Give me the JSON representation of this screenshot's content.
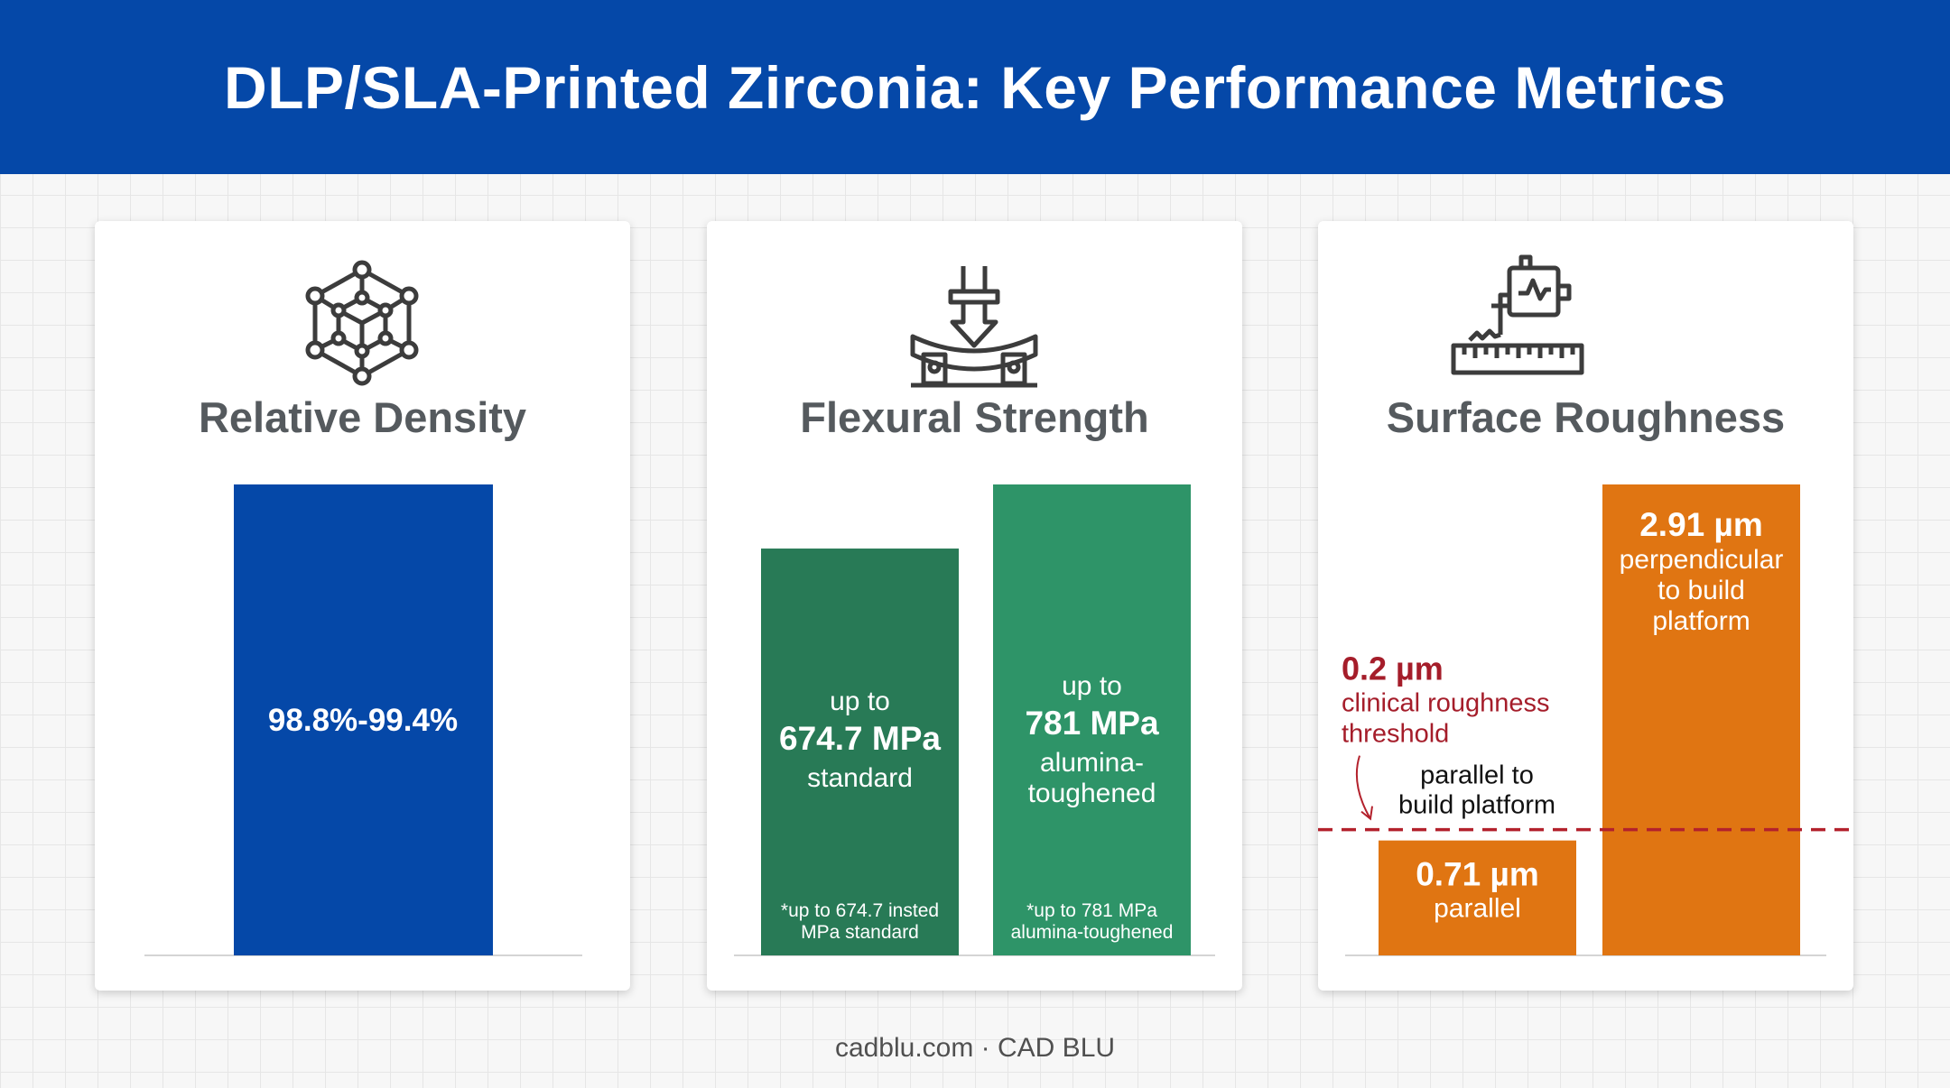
{
  "header": {
    "title": "DLP/SLA-Printed Zirconia: Key Performance Metrics"
  },
  "footer": {
    "text": "cadblu.com · CAD BLU"
  },
  "colors": {
    "header_bg": "#0548a8",
    "density_bar": "#0548a8",
    "flexural_standard": "#287a56",
    "flexural_toughened": "#2e9468",
    "roughness_bar": "#e07512",
    "threshold_line": "#b3212c",
    "threshold_text": "#a51d2a"
  },
  "cards": [
    {
      "title": "Relative Density",
      "icon": "lattice-cube-icon"
    },
    {
      "title": "Flexural Strength",
      "icon": "three-point-bend-test-icon"
    },
    {
      "title": "Surface Roughness",
      "icon": "profilometer-ruler-icon"
    }
  ],
  "chart_data": [
    {
      "type": "bar",
      "title": "Relative Density",
      "categories": [
        ""
      ],
      "values": [
        99.4
      ],
      "ylim": [
        0,
        99.4
      ],
      "bar_labels": [
        {
          "value_text": "98.8%-99.4%"
        }
      ]
    },
    {
      "type": "bar",
      "title": "Flexural Strength",
      "categories": [
        "standard",
        "alumina-toughened"
      ],
      "values": [
        674.7,
        781
      ],
      "ylim": [
        0,
        781
      ],
      "bar_labels": [
        {
          "prefix": "up to",
          "value_text": "674.7 MPa",
          "caption": "standard",
          "footnote_1": "*up to 674.7 insted",
          "footnote_2": "MPa standard"
        },
        {
          "prefix": "up to",
          "value_text": "781 MPa",
          "caption_1": "alumina-",
          "caption_2": "toughened",
          "footnote_1": "*up to 781 MPa",
          "footnote_2": "alumina-toughened"
        }
      ]
    },
    {
      "type": "bar",
      "title": "Surface Roughness",
      "categories": [
        "parallel",
        "perpendicular to build platform"
      ],
      "values": [
        0.71,
        2.91
      ],
      "ylim": [
        0,
        2.91
      ],
      "bar_labels": [
        {
          "value_text": "0.71 µm",
          "caption": "parallel"
        },
        {
          "value_text": "2.91 µm",
          "caption_1": "perpendicular",
          "caption_2": "to build",
          "caption_3": "platform"
        }
      ],
      "threshold": {
        "value": 0.2,
        "value_text": "0.2 µm",
        "label_1": "clinical roughness",
        "label_2": "threshold"
      },
      "annotation": {
        "line_1": "parallel to",
        "line_2": "build platform"
      }
    }
  ]
}
